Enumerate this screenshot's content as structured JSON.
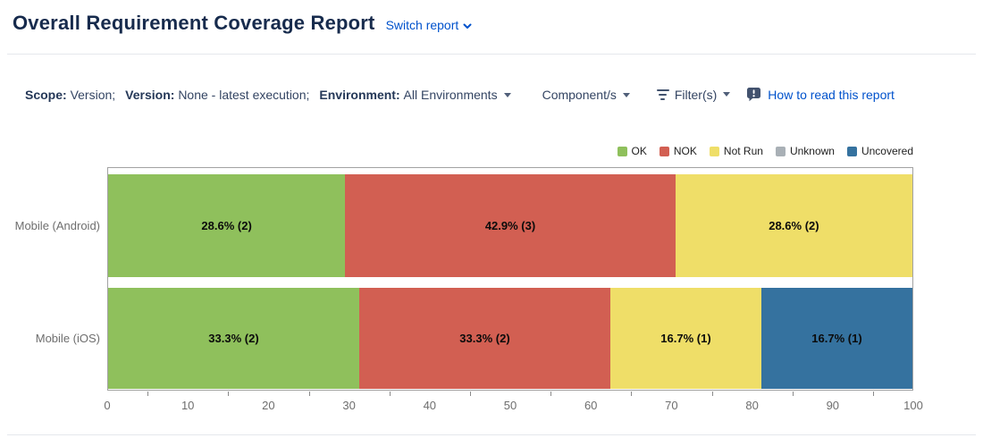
{
  "header": {
    "title": "Overall Requirement Coverage Report",
    "switch_report_label": "Switch report"
  },
  "filters": {
    "scope_label": "Scope:",
    "scope_value": "Version;",
    "version_label": "Version:",
    "version_value": "None - latest execution;",
    "environment_label": "Environment:",
    "environment_value": "All Environments",
    "components_label": "Component/s",
    "filters_label": "Filter(s)",
    "help_link_label": "How to read this report"
  },
  "colors": {
    "ok": "#8FC05C",
    "nok": "#D25F52",
    "not_run": "#EFDE68",
    "unknown": "#A9B0B6",
    "uncovered": "#35729F",
    "link_blue": "#0052CC",
    "title_navy": "#172B4D"
  },
  "chart_data": {
    "type": "bar",
    "orientation": "horizontal",
    "stacked": true,
    "title": "",
    "xlabel": "",
    "ylabel": "",
    "xlim": [
      0,
      100
    ],
    "x_ticks": [
      0,
      10,
      20,
      30,
      40,
      50,
      60,
      70,
      80,
      90,
      100
    ],
    "grid": false,
    "legend_position": "top-right",
    "categories": [
      "Mobile (Android)",
      "Mobile (iOS)"
    ],
    "series": [
      {
        "name": "OK",
        "color": "#8FC05C",
        "values": [
          28.6,
          33.3
        ],
        "counts": [
          2,
          2
        ]
      },
      {
        "name": "NOK",
        "color": "#D25F52",
        "values": [
          42.9,
          33.3
        ],
        "counts": [
          3,
          2
        ]
      },
      {
        "name": "Not Run",
        "color": "#EFDE68",
        "values": [
          28.6,
          16.7
        ],
        "counts": [
          2,
          1
        ]
      },
      {
        "name": "Unknown",
        "color": "#A9B0B6",
        "values": [
          0,
          0
        ],
        "counts": [
          0,
          0
        ]
      },
      {
        "name": "Uncovered",
        "color": "#35729F",
        "values": [
          0,
          16.7
        ],
        "counts": [
          0,
          1
        ]
      }
    ],
    "segment_label_format": "{value}% ({count})"
  }
}
